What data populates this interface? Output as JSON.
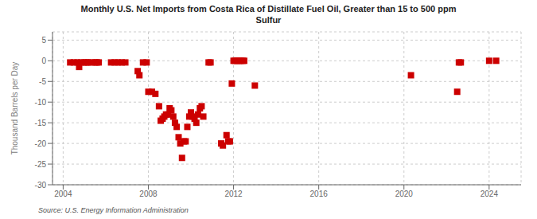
{
  "chart_data": {
    "type": "scatter",
    "title": "Monthly U.S. Net Imports from Costa Rica of Distillate Fuel Oil, Greater than 15 to 500 ppm\nSulfur",
    "ylabel": "Thousand Barrels per Day",
    "annotations": [
      "Source: U.S. Energy Information Administration"
    ],
    "color": "#cc0000",
    "marker": "square",
    "grid": true,
    "xlim": [
      2003.5,
      2025.5
    ],
    "ylim": [
      -30,
      7
    ],
    "xticks": [
      2004,
      2008,
      2012,
      2016,
      2020,
      2024
    ],
    "yticks": [
      5,
      0,
      -5,
      -10,
      -15,
      -20,
      -25,
      -30
    ],
    "x": [
      2004.33,
      2004.5,
      2004.67,
      2004.75,
      2004.83,
      2005.0,
      2005.08,
      2005.17,
      2005.33,
      2005.5,
      2005.58,
      2005.67,
      2006.25,
      2006.42,
      2006.58,
      2006.75,
      2006.92,
      2007.5,
      2007.58,
      2007.75,
      2007.92,
      2008.0,
      2008.17,
      2008.33,
      2008.5,
      2008.58,
      2008.67,
      2008.75,
      2008.83,
      2008.92,
      2009.0,
      2009.08,
      2009.17,
      2009.25,
      2009.33,
      2009.42,
      2009.5,
      2009.58,
      2009.67,
      2009.75,
      2009.83,
      2009.92,
      2010.0,
      2010.08,
      2010.17,
      2010.25,
      2010.33,
      2010.42,
      2010.5,
      2010.58,
      2010.83,
      2010.92,
      2011.42,
      2011.5,
      2011.67,
      2011.75,
      2011.83,
      2011.92,
      2012.0,
      2012.08,
      2012.17,
      2012.25,
      2012.33,
      2012.42,
      2012.5,
      2013.0,
      2020.33,
      2022.5,
      2022.58,
      2022.67,
      2024.0,
      2024.33
    ],
    "values": [
      -0.4,
      -0.4,
      -0.4,
      -1.5,
      -0.4,
      -0.4,
      -0.4,
      -0.4,
      -0.4,
      -0.4,
      -0.4,
      -0.4,
      -0.4,
      -0.4,
      -0.4,
      -0.4,
      -0.4,
      -2.5,
      -3.5,
      -0.4,
      -0.4,
      -7.5,
      -7.5,
      -8.0,
      -11.0,
      -14.5,
      -14.0,
      -13.5,
      -13.0,
      -13.0,
      -11.5,
      -12.0,
      -13.5,
      -15.0,
      -16.0,
      -18.5,
      -20.0,
      -23.5,
      -19.5,
      -19.5,
      -16.0,
      -13.5,
      -12.5,
      -13.5,
      -14.0,
      -15.0,
      -13.0,
      -11.5,
      -11.0,
      -13.5,
      -0.4,
      -0.4,
      -20.0,
      -20.5,
      -18.0,
      -19.5,
      -19.5,
      -5.5,
      0.0,
      0.0,
      0.0,
      0.0,
      0.0,
      0.0,
      0.0,
      -6.0,
      -3.5,
      -7.5,
      -0.4,
      -0.4,
      0.0,
      0.0
    ]
  }
}
